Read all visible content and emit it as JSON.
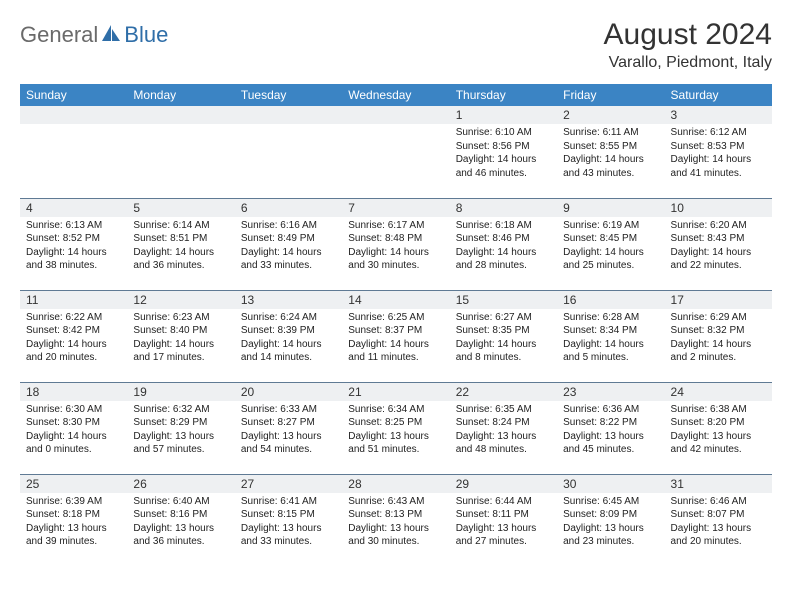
{
  "brand": {
    "general": "General",
    "blue": "Blue"
  },
  "title": "August 2024",
  "location": "Varallo, Piedmont, Italy",
  "colors": {
    "header_bg": "#3b84c4",
    "header_text": "#ffffff",
    "daynum_bg": "#eef0f2",
    "row_border": "#5f7a94",
    "logo_gray": "#6a6a6a",
    "logo_blue": "#2f6ea8",
    "text": "#222222",
    "background": "#ffffff"
  },
  "weekdays": [
    "Sunday",
    "Monday",
    "Tuesday",
    "Wednesday",
    "Thursday",
    "Friday",
    "Saturday"
  ],
  "layout": {
    "first_weekday_index": 4,
    "days_in_month": 31,
    "rows": 5,
    "cols": 7
  },
  "days": [
    {
      "n": 1,
      "sunrise": "6:10 AM",
      "sunset": "8:56 PM",
      "daylight": "14 hours and 46 minutes."
    },
    {
      "n": 2,
      "sunrise": "6:11 AM",
      "sunset": "8:55 PM",
      "daylight": "14 hours and 43 minutes."
    },
    {
      "n": 3,
      "sunrise": "6:12 AM",
      "sunset": "8:53 PM",
      "daylight": "14 hours and 41 minutes."
    },
    {
      "n": 4,
      "sunrise": "6:13 AM",
      "sunset": "8:52 PM",
      "daylight": "14 hours and 38 minutes."
    },
    {
      "n": 5,
      "sunrise": "6:14 AM",
      "sunset": "8:51 PM",
      "daylight": "14 hours and 36 minutes."
    },
    {
      "n": 6,
      "sunrise": "6:16 AM",
      "sunset": "8:49 PM",
      "daylight": "14 hours and 33 minutes."
    },
    {
      "n": 7,
      "sunrise": "6:17 AM",
      "sunset": "8:48 PM",
      "daylight": "14 hours and 30 minutes."
    },
    {
      "n": 8,
      "sunrise": "6:18 AM",
      "sunset": "8:46 PM",
      "daylight": "14 hours and 28 minutes."
    },
    {
      "n": 9,
      "sunrise": "6:19 AM",
      "sunset": "8:45 PM",
      "daylight": "14 hours and 25 minutes."
    },
    {
      "n": 10,
      "sunrise": "6:20 AM",
      "sunset": "8:43 PM",
      "daylight": "14 hours and 22 minutes."
    },
    {
      "n": 11,
      "sunrise": "6:22 AM",
      "sunset": "8:42 PM",
      "daylight": "14 hours and 20 minutes."
    },
    {
      "n": 12,
      "sunrise": "6:23 AM",
      "sunset": "8:40 PM",
      "daylight": "14 hours and 17 minutes."
    },
    {
      "n": 13,
      "sunrise": "6:24 AM",
      "sunset": "8:39 PM",
      "daylight": "14 hours and 14 minutes."
    },
    {
      "n": 14,
      "sunrise": "6:25 AM",
      "sunset": "8:37 PM",
      "daylight": "14 hours and 11 minutes."
    },
    {
      "n": 15,
      "sunrise": "6:27 AM",
      "sunset": "8:35 PM",
      "daylight": "14 hours and 8 minutes."
    },
    {
      "n": 16,
      "sunrise": "6:28 AM",
      "sunset": "8:34 PM",
      "daylight": "14 hours and 5 minutes."
    },
    {
      "n": 17,
      "sunrise": "6:29 AM",
      "sunset": "8:32 PM",
      "daylight": "14 hours and 2 minutes."
    },
    {
      "n": 18,
      "sunrise": "6:30 AM",
      "sunset": "8:30 PM",
      "daylight": "14 hours and 0 minutes."
    },
    {
      "n": 19,
      "sunrise": "6:32 AM",
      "sunset": "8:29 PM",
      "daylight": "13 hours and 57 minutes."
    },
    {
      "n": 20,
      "sunrise": "6:33 AM",
      "sunset": "8:27 PM",
      "daylight": "13 hours and 54 minutes."
    },
    {
      "n": 21,
      "sunrise": "6:34 AM",
      "sunset": "8:25 PM",
      "daylight": "13 hours and 51 minutes."
    },
    {
      "n": 22,
      "sunrise": "6:35 AM",
      "sunset": "8:24 PM",
      "daylight": "13 hours and 48 minutes."
    },
    {
      "n": 23,
      "sunrise": "6:36 AM",
      "sunset": "8:22 PM",
      "daylight": "13 hours and 45 minutes."
    },
    {
      "n": 24,
      "sunrise": "6:38 AM",
      "sunset": "8:20 PM",
      "daylight": "13 hours and 42 minutes."
    },
    {
      "n": 25,
      "sunrise": "6:39 AM",
      "sunset": "8:18 PM",
      "daylight": "13 hours and 39 minutes."
    },
    {
      "n": 26,
      "sunrise": "6:40 AM",
      "sunset": "8:16 PM",
      "daylight": "13 hours and 36 minutes."
    },
    {
      "n": 27,
      "sunrise": "6:41 AM",
      "sunset": "8:15 PM",
      "daylight": "13 hours and 33 minutes."
    },
    {
      "n": 28,
      "sunrise": "6:43 AM",
      "sunset": "8:13 PM",
      "daylight": "13 hours and 30 minutes."
    },
    {
      "n": 29,
      "sunrise": "6:44 AM",
      "sunset": "8:11 PM",
      "daylight": "13 hours and 27 minutes."
    },
    {
      "n": 30,
      "sunrise": "6:45 AM",
      "sunset": "8:09 PM",
      "daylight": "13 hours and 23 minutes."
    },
    {
      "n": 31,
      "sunrise": "6:46 AM",
      "sunset": "8:07 PM",
      "daylight": "13 hours and 20 minutes."
    }
  ],
  "labels": {
    "sunrise": "Sunrise:",
    "sunset": "Sunset:",
    "daylight": "Daylight:"
  }
}
